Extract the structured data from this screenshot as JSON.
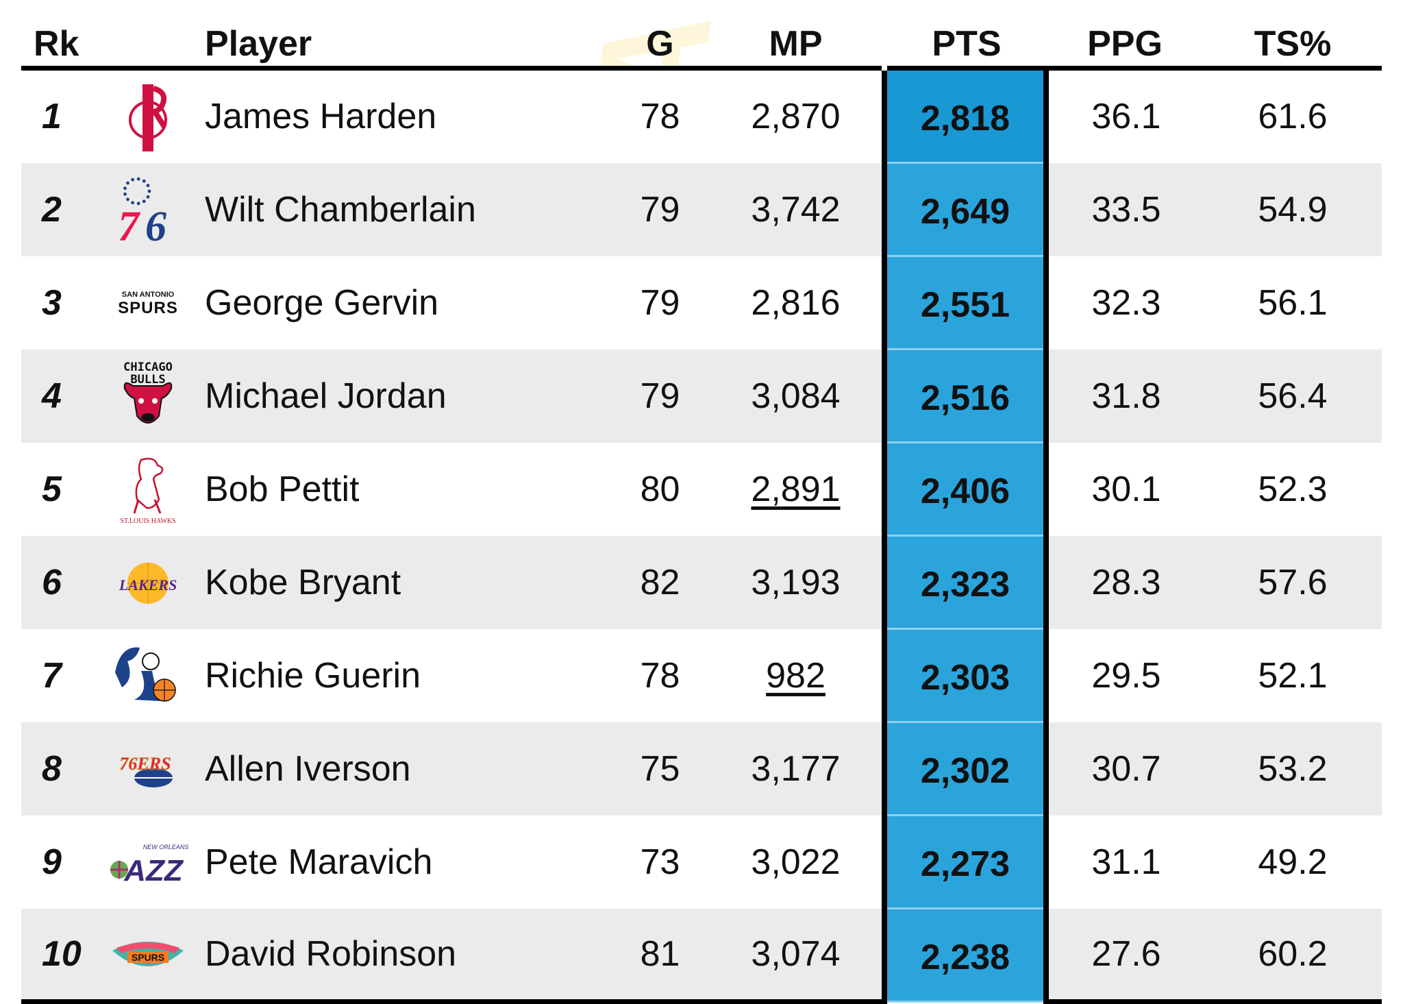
{
  "chart_data": {
    "type": "table",
    "columns": [
      "Rk",
      "Player",
      "G",
      "MP",
      "PTS",
      "PPG",
      "TS%"
    ],
    "rows": [
      {
        "rk": "1",
        "team_logo": "houston-rockets-logo",
        "player": "James Harden",
        "g": "78",
        "mp": "2,870",
        "mp_underlined": false,
        "pts": "2,818",
        "ppg": "36.1",
        "ts": "61.6"
      },
      {
        "rk": "2",
        "team_logo": "philadelphia-76ers-logo",
        "player": "Wilt Chamberlain",
        "g": "79",
        "mp": "3,742",
        "mp_underlined": false,
        "pts": "2,649",
        "ppg": "33.5",
        "ts": "54.9"
      },
      {
        "rk": "3",
        "team_logo": "san-antonio-spurs-logo",
        "player": "George Gervin",
        "g": "79",
        "mp": "2,816",
        "mp_underlined": false,
        "pts": "2,551",
        "ppg": "32.3",
        "ts": "56.1"
      },
      {
        "rk": "4",
        "team_logo": "chicago-bulls-logo",
        "player": "Michael Jordan",
        "g": "79",
        "mp": "3,084",
        "mp_underlined": false,
        "pts": "2,516",
        "ppg": "31.8",
        "ts": "56.4"
      },
      {
        "rk": "5",
        "team_logo": "st-louis-hawks-logo",
        "player": "Bob Pettit",
        "g": "80",
        "mp": "2,891",
        "mp_underlined": true,
        "pts": "2,406",
        "ppg": "30.1",
        "ts": "52.3"
      },
      {
        "rk": "6",
        "team_logo": "los-angeles-lakers-logo",
        "player": "Kobe Bryant",
        "g": "82",
        "mp": "3,193",
        "mp_underlined": false,
        "pts": "2,323",
        "ppg": "28.3",
        "ts": "57.6"
      },
      {
        "rk": "7",
        "team_logo": "new-york-knicks-logo",
        "player": "Richie Guerin",
        "g": "78",
        "mp": "982",
        "mp_underlined": true,
        "pts": "2,303",
        "ppg": "29.5",
        "ts": "52.1"
      },
      {
        "rk": "8",
        "team_logo": "philadelphia-76ers-retro-logo",
        "player": "Allen Iverson",
        "g": "75",
        "mp": "3,177",
        "mp_underlined": false,
        "pts": "2,302",
        "ppg": "30.7",
        "ts": "53.2"
      },
      {
        "rk": "9",
        "team_logo": "new-orleans-jazz-logo",
        "player": "Pete Maravich",
        "g": "73",
        "mp": "3,022",
        "mp_underlined": false,
        "pts": "2,273",
        "ppg": "31.1",
        "ts": "49.2"
      },
      {
        "rk": "10",
        "team_logo": "san-antonio-spurs-fiesta-logo",
        "player": "David Robinson",
        "g": "81",
        "mp": "3,074",
        "mp_underlined": false,
        "pts": "2,238",
        "ppg": "27.6",
        "ts": "60.2"
      }
    ],
    "highlight_column": "PTS",
    "colors": {
      "highlight": "#2ba4dc",
      "highlight_top": "#1a98d4",
      "row_alt": "#ebebeb",
      "rule": "#000000"
    }
  },
  "logo_text": {
    "spurs": "SAN ANTONIO",
    "spurs_word": "SPURS",
    "bulls_city": "CHICAGO",
    "bulls_word": "BULLS",
    "hawks": "ST.LOUIS HAWKS",
    "lakers": "LAKERS",
    "sixers_num": "76",
    "sixers_retro": "76ERS",
    "jazz": "JAZZ",
    "jazz_city": "NEW ORLEANS",
    "spurs2": "SPURS",
    "watermark": "XTRA"
  }
}
